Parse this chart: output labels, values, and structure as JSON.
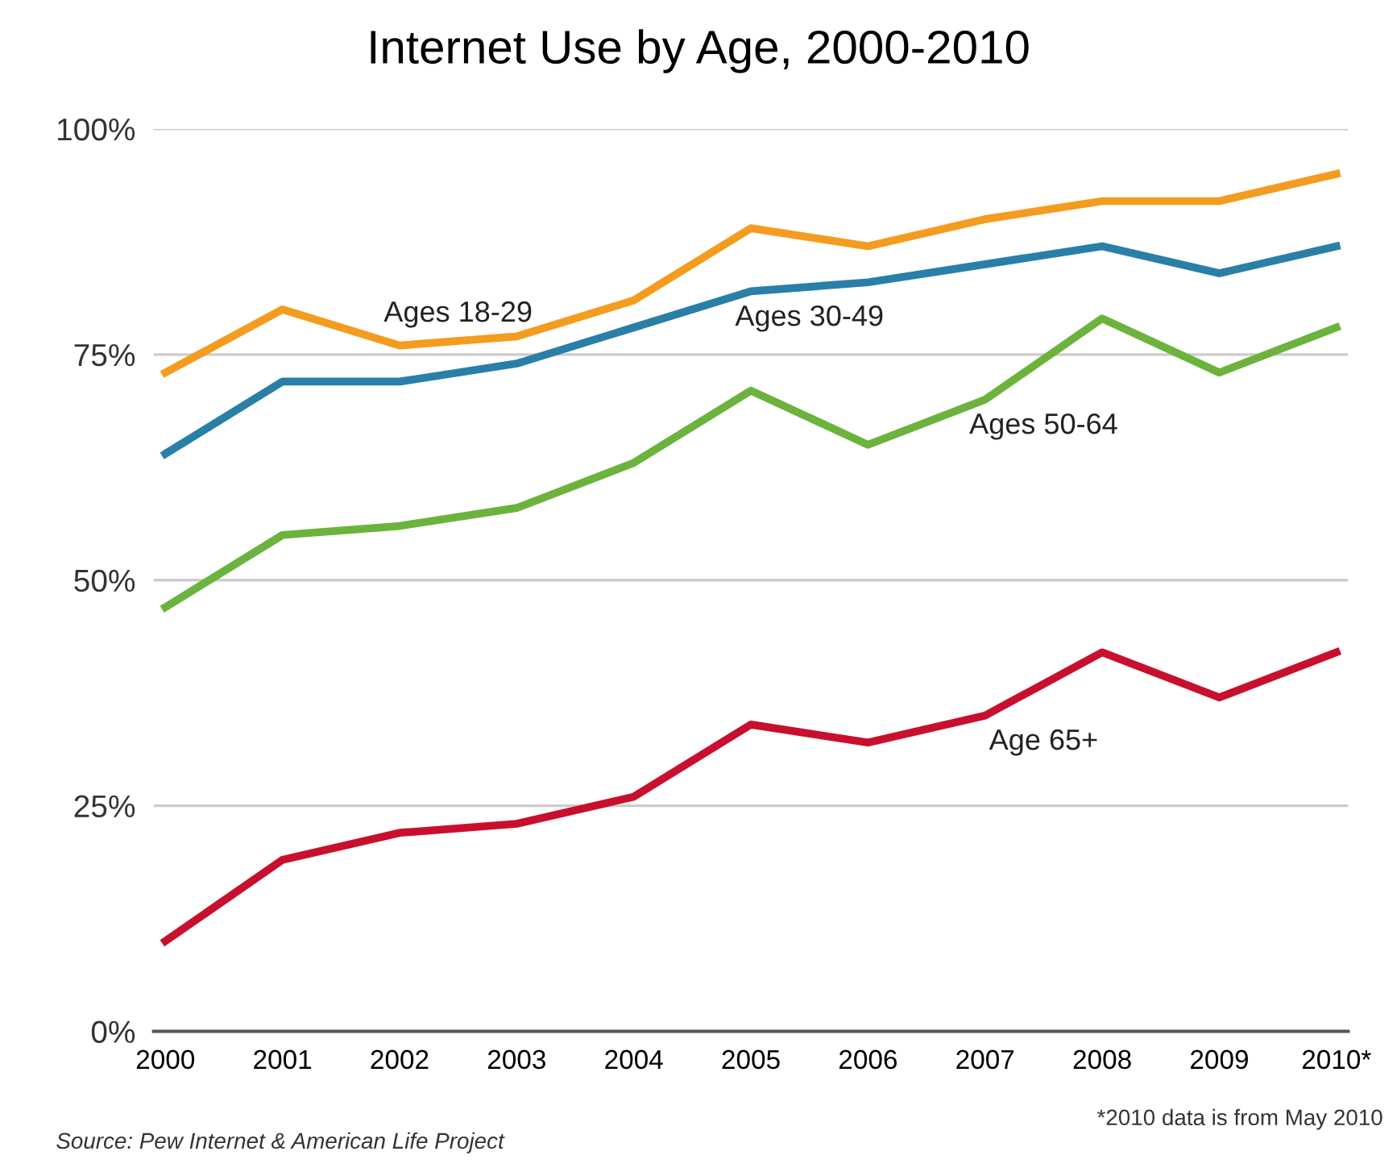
{
  "chart_data": {
    "type": "line",
    "title": "Internet Use by Age, 2000-2010",
    "categories": [
      "2000",
      "2001",
      "2002",
      "2003",
      "2004",
      "2005",
      "2006",
      "2007",
      "2008",
      "2009",
      "2010*"
    ],
    "series": [
      {
        "name": "Ages 18-29",
        "color": "#f39c1f",
        "values": [
          73,
          80,
          76,
          77,
          81,
          89,
          87,
          90,
          92,
          92,
          95
        ]
      },
      {
        "name": "Ages 30-49",
        "color": "#2a7fa8",
        "values": [
          64,
          72,
          72,
          74,
          78,
          82,
          83,
          85,
          87,
          84,
          87
        ]
      },
      {
        "name": "Ages 50-64",
        "color": "#6cb33e",
        "values": [
          47,
          55,
          56,
          58,
          63,
          71,
          65,
          70,
          79,
          73,
          78
        ]
      },
      {
        "name": "Age 65+",
        "color": "#c8102e",
        "values": [
          10,
          19,
          22,
          23,
          26,
          34,
          32,
          35,
          42,
          37,
          42
        ]
      }
    ],
    "ylim": [
      0,
      100
    ],
    "yticks": [
      {
        "value": 0,
        "label": "0%"
      },
      {
        "value": 25,
        "label": "25%"
      },
      {
        "value": 50,
        "label": "50%"
      },
      {
        "value": 75,
        "label": "75%"
      },
      {
        "value": 100,
        "label": "100%"
      }
    ],
    "grid": "y",
    "legend": false,
    "marker": "none",
    "line_style": "solid",
    "annotations": [
      "Source: Pew Internet & American Life Project",
      "*2010 data is from May 2010"
    ]
  }
}
